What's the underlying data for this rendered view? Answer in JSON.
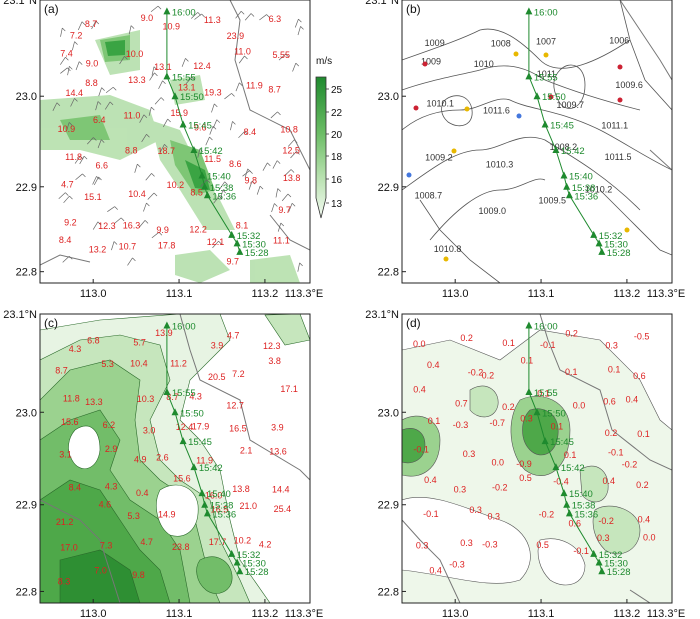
{
  "colors": {
    "track": "#1e8a2e",
    "obs_text": "#d22222",
    "station_red": "#cc2233",
    "station_yellow": "#e8b800"
  },
  "axes": {
    "x_ticks": [
      "113.0",
      "113.1",
      "113.2",
      "113.3°E"
    ],
    "y_ticks": [
      "23.1°N",
      "23.0",
      "22.9",
      "22.8"
    ]
  },
  "track_labels": [
    "16:00",
    "15:55",
    "15:50",
    "15:45",
    "15:42",
    "15:40",
    "15:38",
    "15:36",
    "15:32",
    "15:30",
    "15:28"
  ],
  "panels": [
    {
      "letter": "(a)",
      "colorbar": {
        "unit": "m/s",
        "ticks": [
          "25",
          "22",
          "20",
          "18",
          "16",
          "13"
        ]
      },
      "obs": [
        "7.2",
        "8.7",
        "9.0",
        "10.9",
        "11.3",
        "23.9",
        "6.3",
        "7.4",
        "9.0",
        "10.0",
        "13.1",
        "12.4",
        "11.0",
        "5.55",
        "14.4",
        "8.8",
        "13.3",
        "13.1",
        "19.3",
        "11.9",
        "8.7",
        "10.9",
        "6.4",
        "11.0",
        "15.9",
        "9.6",
        "8.4",
        "10.8",
        "11.8",
        "6.6",
        "8.8",
        "18.7",
        "11.5",
        "8.6",
        "12.5",
        "4.7",
        "15.1",
        "10.4",
        "10.2",
        "8.5",
        "9.8",
        "13.8",
        "9.2",
        "12.3",
        "16.3",
        "9.9",
        "12.2",
        "8.1",
        "9.7",
        "8.4",
        "13.2",
        "10.7",
        "17.8",
        "12.1",
        "9.7",
        "11.1"
      ]
    },
    {
      "letter": "(b)",
      "isobars": [
        "1009",
        "1008",
        "1007",
        "1006",
        "1009",
        "1010",
        "1011",
        "1009.6",
        "1010.1",
        "1011.6",
        "1009.7",
        "1011.1",
        "1009.2",
        "1010.3",
        "1008.2",
        "1011.5",
        "1008.7",
        "1009.0",
        "1009.5",
        "1010.2",
        "1010.8"
      ]
    },
    {
      "letter": "(c)",
      "obs": [
        "4.3",
        "6.8",
        "5.7",
        "13.9",
        "3.9",
        "4.7",
        "12.3",
        "8.7",
        "5.3",
        "10.4",
        "11.2",
        "20.5",
        "7.2",
        "3.8",
        "11.8",
        "13.3",
        "10.3",
        "8.7",
        "4.3",
        "12.7",
        "17.1",
        "15.6",
        "6.2",
        "3.0",
        "12.4",
        "17.9",
        "16.5",
        "3.9",
        "3.1",
        "2.9",
        "4.9",
        "2.6",
        "11.9",
        "2.1",
        "13.6",
        "8.4",
        "4.3",
        "0.4",
        "15.6",
        "16.0",
        "13.8",
        "14.4",
        "21.2",
        "4.6",
        "5.3",
        "14.9",
        "16.5",
        "21.0",
        "25.4",
        "17.0",
        "7.3",
        "4.7",
        "23.8",
        "17.7",
        "10.2",
        "4.2",
        "8.3",
        "7.0",
        "9.8"
      ]
    },
    {
      "letter": "(d)",
      "obs": [
        "0.0",
        "0.2",
        "0.1",
        "-0.1",
        "0.2",
        "0.3",
        "-0.5",
        "0.4",
        "-0.2",
        "0.2",
        "0.1",
        "0.1",
        "0.1",
        "0.6",
        "0.4",
        "0.7",
        "0.2",
        "0.1",
        "0.0",
        "0.6",
        "0.4",
        "0.1",
        "-0.3",
        "-0.7",
        "0.3",
        "0.1",
        "0.2",
        "0.1",
        "-0.1",
        "0.3",
        "0.0",
        "-0.9",
        "0.1",
        "-0.1",
        "-0.2",
        "0.4",
        "0.3",
        "-0.2",
        "0.5",
        "-0.4",
        "0.4",
        "0.2",
        "-0.1",
        "0.3",
        "0.3",
        "-0.2",
        "0.6",
        "-0.2",
        "0.4",
        "0.3",
        "0.3",
        "-0.3",
        "0.5",
        "-0.1",
        "0.3",
        "0.0",
        "0.4",
        "-0.3"
      ]
    }
  ]
}
